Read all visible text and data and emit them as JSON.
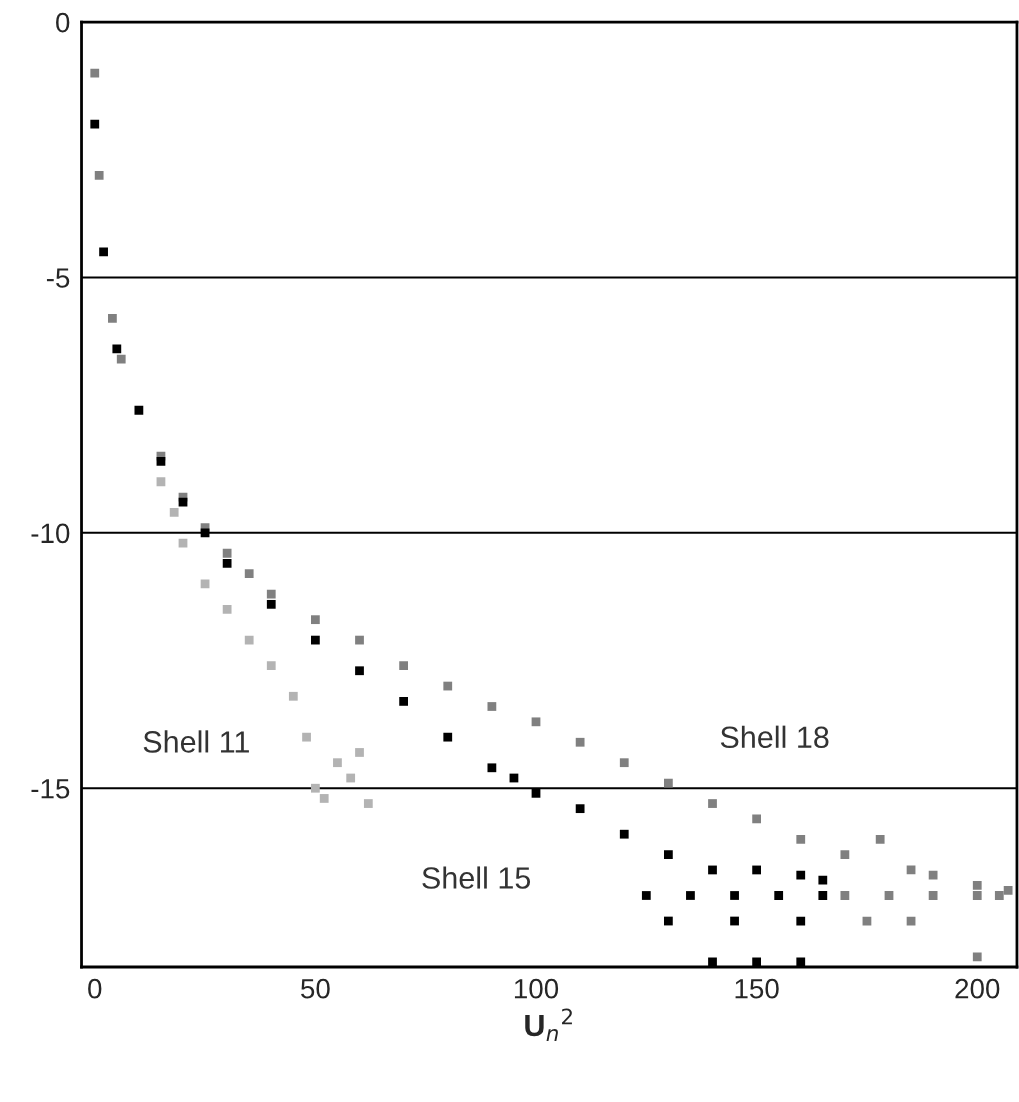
{
  "chart_data": {
    "type": "scatter",
    "xlabel": "U$_{n}$$^{2}$",
    "marker": "square",
    "grid": "y",
    "xlim": [
      -3,
      209
    ],
    "ylim": [
      -18.5,
      0
    ],
    "xticks": [
      0,
      50,
      100,
      150,
      200
    ],
    "yticks": [
      0,
      -5,
      -10,
      -15
    ],
    "series": [
      {
        "name": "Shell 18",
        "color": "#808080",
        "x": [
          0,
          1,
          4,
          6,
          15,
          20,
          25,
          30,
          35,
          40,
          50,
          60,
          70,
          80,
          90,
          100,
          110,
          120,
          130,
          140,
          150,
          160,
          170,
          178,
          185,
          190,
          200,
          207,
          170,
          180,
          190,
          200,
          205,
          175,
          185,
          200
        ],
        "values": [
          -1,
          -3,
          -5.8,
          -6.6,
          -8.5,
          -9.3,
          -9.9,
          -10.4,
          -10.8,
          -11.2,
          -11.7,
          -12.1,
          -12.6,
          -13.0,
          -13.4,
          -13.7,
          -14.1,
          -14.5,
          -14.9,
          -15.3,
          -15.6,
          -16.0,
          -16.3,
          -16.0,
          -16.6,
          -16.7,
          -16.9,
          -17.0,
          -17.1,
          -17.1,
          -17.1,
          -17.1,
          -17.1,
          -17.6,
          -17.6,
          -18.3
        ]
      },
      {
        "name": "Shell 15",
        "color": "#000000",
        "x": [
          0,
          2,
          5,
          10,
          15,
          20,
          25,
          30,
          40,
          50,
          60,
          70,
          80,
          90,
          95,
          100,
          110,
          120,
          130,
          140,
          150,
          160,
          165,
          125,
          135,
          145,
          155,
          165,
          130,
          145,
          160,
          140,
          150,
          160
        ],
        "values": [
          -2,
          -4.5,
          -6.4,
          -7.6,
          -8.6,
          -9.4,
          -10.0,
          -10.6,
          -11.4,
          -12.1,
          -12.7,
          -13.3,
          -14.0,
          -14.6,
          -14.8,
          -15.1,
          -15.4,
          -15.9,
          -16.3,
          -16.6,
          -16.6,
          -16.7,
          -16.8,
          -17.1,
          -17.1,
          -17.1,
          -17.1,
          -17.1,
          -17.6,
          -17.6,
          -17.6,
          -18.4,
          -18.4,
          -18.4
        ]
      },
      {
        "name": "Shell 11",
        "color": "#b3b3b3",
        "x": [
          15,
          18,
          20,
          25,
          30,
          35,
          40,
          45,
          48,
          50,
          52,
          55,
          58,
          60,
          62
        ],
        "values": [
          -9.0,
          -9.6,
          -10.2,
          -11.0,
          -11.5,
          -12.1,
          -12.6,
          -13.2,
          -14.0,
          -15.0,
          -15.2,
          -14.5,
          -14.8,
          -14.3,
          -15.3
        ]
      }
    ]
  }
}
